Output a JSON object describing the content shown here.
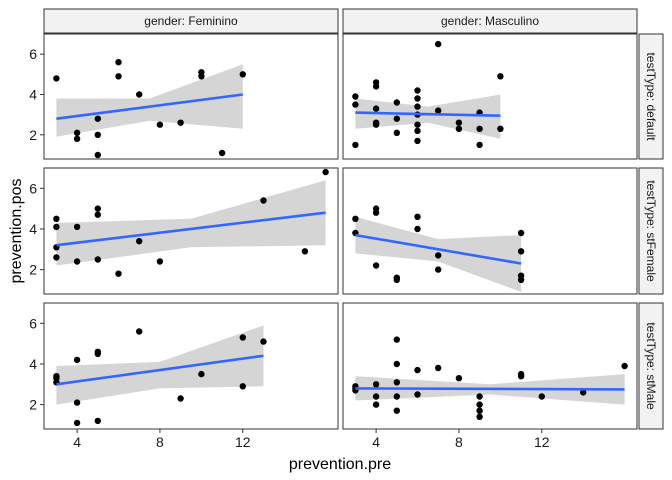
{
  "chart_data": {
    "type": "scatter",
    "title": "",
    "xlabel": "prevention.pre",
    "ylabel": "prevention.pos",
    "xlim": [
      2.4,
      16.6
    ],
    "ylim": [
      0.8,
      7.0
    ],
    "x_ticks": [
      4,
      8,
      12
    ],
    "y_ticks": [
      2,
      4,
      6
    ],
    "grid": false,
    "facets": {
      "cols": {
        "name": "gender",
        "levels": [
          "Feminino",
          "Masculino"
        ]
      },
      "rows": {
        "name": "testType",
        "levels": [
          "default",
          "stFemale",
          "stMale"
        ]
      }
    },
    "col_strip_labels": [
      "gender: Feminino",
      "gender: Masculino"
    ],
    "row_strip_labels": [
      "testType: default",
      "testType: stFemale",
      "testType: stMale"
    ],
    "colors": {
      "points": "#000000",
      "smooth_line": "#3366FF",
      "band": "#D3D3D3",
      "strip_fill": "#F2F2F2"
    },
    "panels": [
      {
        "row": 0,
        "col": 0,
        "points": [
          [
            3,
            4.8
          ],
          [
            4,
            2.1
          ],
          [
            4,
            1.8
          ],
          [
            5,
            2.0
          ],
          [
            5,
            2.8
          ],
          [
            5,
            1.0
          ],
          [
            6,
            5.6
          ],
          [
            6,
            4.9
          ],
          [
            7,
            4.0
          ],
          [
            8,
            2.5
          ],
          [
            9,
            2.6
          ],
          [
            10,
            4.9
          ],
          [
            10,
            5.1
          ],
          [
            11,
            1.1
          ],
          [
            12,
            5.0
          ]
        ],
        "fit": {
          "x_start": 3,
          "x_end": 12,
          "y_start": 2.8,
          "y_end": 4.0,
          "band_lower": [
            1.9,
            2.7,
            2.3
          ],
          "band_upper": [
            3.8,
            3.8,
            5.5
          ]
        }
      },
      {
        "row": 0,
        "col": 1,
        "points": [
          [
            3,
            3.9
          ],
          [
            3,
            3.5
          ],
          [
            3,
            1.5
          ],
          [
            4,
            4.6
          ],
          [
            4,
            4.4
          ],
          [
            4,
            3.3
          ],
          [
            4,
            2.6
          ],
          [
            4,
            2.5
          ],
          [
            5,
            3.6
          ],
          [
            5,
            2.8
          ],
          [
            5,
            2.1
          ],
          [
            6,
            4.2
          ],
          [
            6,
            3.8
          ],
          [
            6,
            3.4
          ],
          [
            6,
            3.0
          ],
          [
            6,
            2.5
          ],
          [
            6,
            2.2
          ],
          [
            6,
            1.7
          ],
          [
            7,
            6.5
          ],
          [
            7,
            3.2
          ],
          [
            8,
            2.6
          ],
          [
            8,
            2.3
          ],
          [
            9,
            3.1
          ],
          [
            9,
            2.3
          ],
          [
            9,
            1.5
          ],
          [
            10,
            4.9
          ],
          [
            10,
            2.3
          ]
        ],
        "fit": {
          "x_start": 3,
          "x_end": 10,
          "y_start": 3.1,
          "y_end": 2.95,
          "band_lower": [
            2.3,
            2.6,
            1.8
          ],
          "band_upper": [
            3.8,
            3.4,
            4.0
          ]
        }
      },
      {
        "row": 1,
        "col": 0,
        "points": [
          [
            3,
            4.5
          ],
          [
            3,
            4.1
          ],
          [
            3,
            3.1
          ],
          [
            3,
            2.6
          ],
          [
            4,
            4.1
          ],
          [
            4,
            2.4
          ],
          [
            5,
            5.0
          ],
          [
            5,
            4.7
          ],
          [
            5,
            2.5
          ],
          [
            6,
            1.8
          ],
          [
            7,
            3.4
          ],
          [
            8,
            2.4
          ],
          [
            13,
            5.4
          ],
          [
            15,
            2.9
          ],
          [
            16,
            6.8
          ]
        ],
        "fit": {
          "x_start": 3,
          "x_end": 16,
          "y_start": 3.2,
          "y_end": 4.8,
          "band_lower": [
            2.2,
            3.1,
            3.2
          ],
          "band_upper": [
            4.3,
            4.5,
            6.4
          ]
        }
      },
      {
        "row": 1,
        "col": 1,
        "points": [
          [
            3,
            4.5
          ],
          [
            3,
            3.8
          ],
          [
            4,
            5.0
          ],
          [
            4,
            4.8
          ],
          [
            4,
            2.2
          ],
          [
            5,
            1.6
          ],
          [
            5,
            1.5
          ],
          [
            6,
            4.6
          ],
          [
            6,
            4.0
          ],
          [
            7,
            2.7
          ],
          [
            7,
            2.0
          ],
          [
            11,
            3.8
          ],
          [
            11,
            2.9
          ],
          [
            11,
            1.7
          ],
          [
            11,
            1.5
          ]
        ],
        "fit": {
          "x_start": 3,
          "x_end": 11,
          "y_start": 3.7,
          "y_end": 2.3,
          "band_lower": [
            2.8,
            2.4,
            0.9
          ],
          "band_upper": [
            4.6,
            3.5,
            3.7
          ]
        }
      },
      {
        "row": 2,
        "col": 0,
        "points": [
          [
            3,
            3.4
          ],
          [
            3,
            3.3
          ],
          [
            3,
            3.1
          ],
          [
            4,
            4.2
          ],
          [
            4,
            2.1
          ],
          [
            4,
            1.1
          ],
          [
            5,
            4.6
          ],
          [
            5,
            4.5
          ],
          [
            5,
            1.2
          ],
          [
            7,
            5.6
          ],
          [
            9,
            2.3
          ],
          [
            10,
            3.5
          ],
          [
            12,
            5.3
          ],
          [
            12,
            2.9
          ],
          [
            13,
            5.1
          ]
        ],
        "fit": {
          "x_start": 3,
          "x_end": 13,
          "y_start": 3.0,
          "y_end": 4.4,
          "band_lower": [
            2.0,
            2.8,
            2.9
          ],
          "band_upper": [
            3.9,
            4.1,
            5.9
          ]
        }
      },
      {
        "row": 2,
        "col": 1,
        "points": [
          [
            3,
            2.9
          ],
          [
            3,
            2.8
          ],
          [
            3,
            2.7
          ],
          [
            4,
            3.0
          ],
          [
            4,
            2.4
          ],
          [
            4,
            2.0
          ],
          [
            5,
            5.2
          ],
          [
            5,
            4.0
          ],
          [
            5,
            3.1
          ],
          [
            5,
            2.4
          ],
          [
            5,
            1.7
          ],
          [
            6,
            3.7
          ],
          [
            6,
            2.5
          ],
          [
            7,
            3.8
          ],
          [
            8,
            3.3
          ],
          [
            9,
            2.4
          ],
          [
            9,
            2.0
          ],
          [
            9,
            1.7
          ],
          [
            9,
            1.4
          ],
          [
            11,
            3.5
          ],
          [
            11,
            3.4
          ],
          [
            12,
            2.4
          ],
          [
            14,
            2.6
          ],
          [
            16,
            3.9
          ]
        ],
        "fit": {
          "x_start": 3,
          "x_end": 16,
          "y_start": 2.8,
          "y_end": 2.75,
          "band_lower": [
            2.2,
            2.5,
            2.0
          ],
          "band_upper": [
            3.4,
            3.0,
            3.5
          ]
        }
      }
    ]
  }
}
